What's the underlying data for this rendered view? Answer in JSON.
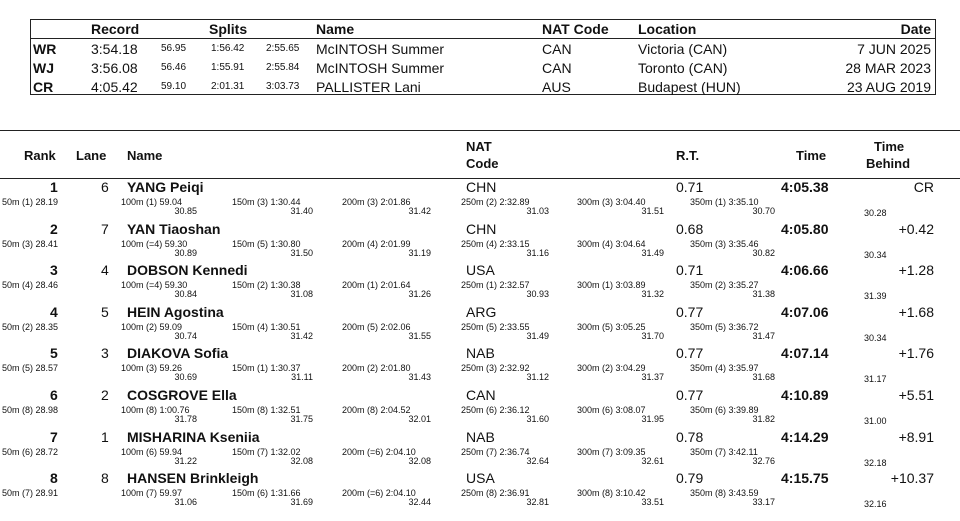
{
  "records": {
    "headers": {
      "record": "Record",
      "splits": "Splits",
      "name": "Name",
      "nat": "NAT Code",
      "location": "Location",
      "date": "Date"
    },
    "rows": [
      {
        "code": "WR",
        "time": "3:54.18",
        "s1": "56.95",
        "s2": "1:56.42",
        "s3": "2:55.65",
        "name": "McINTOSH Summer",
        "nat": "CAN",
        "location": "Victoria (CAN)",
        "date": "7 JUN 2025"
      },
      {
        "code": "WJ",
        "time": "3:56.08",
        "s1": "56.46",
        "s2": "1:55.91",
        "s3": "2:55.84",
        "name": "McINTOSH Summer",
        "nat": "CAN",
        "location": "Toronto (CAN)",
        "date": "28 MAR 2023"
      },
      {
        "code": "CR",
        "time": "4:05.42",
        "s1": "59.10",
        "s2": "2:01.31",
        "s3": "3:03.73",
        "name": "PALLISTER Lani",
        "nat": "AUS",
        "location": "Budapest (HUN)",
        "date": "23 AUG 2019"
      }
    ]
  },
  "results_header": {
    "rank": "Rank",
    "lane": "Lane",
    "name": "Name",
    "nat_line1": "NAT",
    "nat_line2": "Code",
    "rt": "R.T.",
    "time": "Time",
    "behind_line1": "Time",
    "behind_line2": "Behind"
  },
  "results": [
    {
      "rank": "1",
      "lane": "6",
      "name": "YANG Peiqi",
      "nat": "CHN",
      "rt": "0.71",
      "time": "4:05.38",
      "behind": "CR",
      "s50": "50m (1) 28.19",
      "s100": "100m (1) 59.04",
      "s100b": "30.85",
      "s150": "150m (3) 1:30.44",
      "s150b": "31.40",
      "s200": "200m (3) 2:01.86",
      "s200b": "31.42",
      "s250": "250m (2) 2:32.89",
      "s250b": "31.03",
      "s300": "300m (3) 3:04.40",
      "s300b": "31.51",
      "s350": "350m (1) 3:35.10",
      "s350b": "30.70",
      "last": "30.28"
    },
    {
      "rank": "2",
      "lane": "7",
      "name": "YAN Tiaoshan",
      "nat": "CHN",
      "rt": "0.68",
      "time": "4:05.80",
      "behind": "+0.42",
      "s50": "50m (3) 28.41",
      "s100": "100m (=4) 59.30",
      "s100b": "30.89",
      "s150": "150m (5) 1:30.80",
      "s150b": "31.50",
      "s200": "200m (4) 2:01.99",
      "s200b": "31.19",
      "s250": "250m (4) 2:33.15",
      "s250b": "31.16",
      "s300": "300m (4) 3:04.64",
      "s300b": "31.49",
      "s350": "350m (3) 3:35.46",
      "s350b": "30.82",
      "last": "30.34"
    },
    {
      "rank": "3",
      "lane": "4",
      "name": "DOBSON Kennedi",
      "nat": "USA",
      "rt": "0.71",
      "time": "4:06.66",
      "behind": "+1.28",
      "s50": "50m (4) 28.46",
      "s100": "100m (=4) 59.30",
      "s100b": "30.84",
      "s150": "150m (2) 1:30.38",
      "s150b": "31.08",
      "s200": "200m (1) 2:01.64",
      "s200b": "31.26",
      "s250": "250m (1) 2:32.57",
      "s250b": "30.93",
      "s300": "300m (1) 3:03.89",
      "s300b": "31.32",
      "s350": "350m (2) 3:35.27",
      "s350b": "31.38",
      "last": "31.39"
    },
    {
      "rank": "4",
      "lane": "5",
      "name": "HEIN Agostina",
      "nat": "ARG",
      "rt": "0.77",
      "time": "4:07.06",
      "behind": "+1.68",
      "s50": "50m (2) 28.35",
      "s100": "100m (2) 59.09",
      "s100b": "30.74",
      "s150": "150m (4) 1:30.51",
      "s150b": "31.42",
      "s200": "200m (5) 2:02.06",
      "s200b": "31.55",
      "s250": "250m (5) 2:33.55",
      "s250b": "31.49",
      "s300": "300m (5) 3:05.25",
      "s300b": "31.70",
      "s350": "350m (5) 3:36.72",
      "s350b": "31.47",
      "last": "30.34"
    },
    {
      "rank": "5",
      "lane": "3",
      "name": "DIAKOVA Sofia",
      "nat": "NAB",
      "rt": "0.77",
      "time": "4:07.14",
      "behind": "+1.76",
      "s50": "50m (5) 28.57",
      "s100": "100m (3) 59.26",
      "s100b": "30.69",
      "s150": "150m (1) 1:30.37",
      "s150b": "31.11",
      "s200": "200m (2) 2:01.80",
      "s200b": "31.43",
      "s250": "250m (3) 2:32.92",
      "s250b": "31.12",
      "s300": "300m (2) 3:04.29",
      "s300b": "31.37",
      "s350": "350m (4) 3:35.97",
      "s350b": "31.68",
      "last": "31.17"
    },
    {
      "rank": "6",
      "lane": "2",
      "name": "COSGROVE Ella",
      "nat": "CAN",
      "rt": "0.77",
      "time": "4:10.89",
      "behind": "+5.51",
      "s50": "50m (8) 28.98",
      "s100": "100m (8) 1:00.76",
      "s100b": "31.78",
      "s150": "150m (8) 1:32.51",
      "s150b": "31.75",
      "s200": "200m (8) 2:04.52",
      "s200b": "32.01",
      "s250": "250m (6) 2:36.12",
      "s250b": "31.60",
      "s300": "300m (6) 3:08.07",
      "s300b": "31.95",
      "s350": "350m (6) 3:39.89",
      "s350b": "31.82",
      "last": "31.00"
    },
    {
      "rank": "7",
      "lane": "1",
      "name": "MISHARINA Kseniia",
      "nat": "NAB",
      "rt": "0.78",
      "time": "4:14.29",
      "behind": "+8.91",
      "s50": "50m (6) 28.72",
      "s100": "100m (6) 59.94",
      "s100b": "31.22",
      "s150": "150m (7) 1:32.02",
      "s150b": "32.08",
      "s200": "200m (=6) 2:04.10",
      "s200b": "32.08",
      "s250": "250m (7) 2:36.74",
      "s250b": "32.64",
      "s300": "300m (7) 3:09.35",
      "s300b": "32.61",
      "s350": "350m (7) 3:42.11",
      "s350b": "32.76",
      "last": "32.18"
    },
    {
      "rank": "8",
      "lane": "8",
      "name": "HANSEN Brinkleigh",
      "nat": "USA",
      "rt": "0.79",
      "time": "4:15.75",
      "behind": "+10.37",
      "s50": "50m (7) 28.91",
      "s100": "100m (7) 59.97",
      "s100b": "31.06",
      "s150": "150m (6) 1:31.66",
      "s150b": "31.69",
      "s200": "200m (=6) 2:04.10",
      "s200b": "32.44",
      "s250": "250m (8) 2:36.91",
      "s250b": "32.81",
      "s300": "300m (8) 3:10.42",
      "s300b": "33.51",
      "s350": "350m (8) 3:43.59",
      "s350b": "33.17",
      "last": "32.16"
    }
  ]
}
